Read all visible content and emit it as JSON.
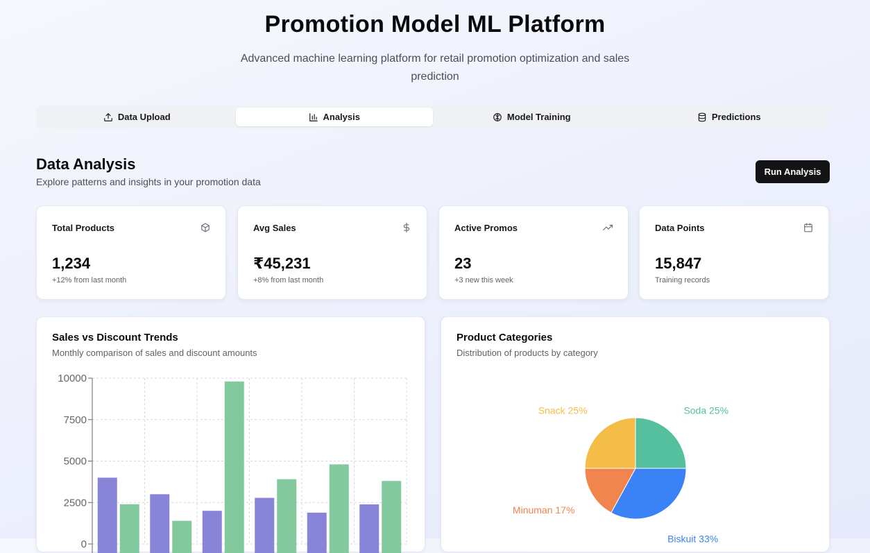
{
  "header": {
    "title": "Promotion Model ML Platform",
    "subtitle": "Advanced machine learning platform for retail promotion optimization and sales prediction"
  },
  "tabs": [
    {
      "label": "Data Upload",
      "icon": "upload-icon",
      "active": false
    },
    {
      "label": "Analysis",
      "icon": "bar-chart-icon",
      "active": true
    },
    {
      "label": "Model Training",
      "icon": "brain-icon",
      "active": false
    },
    {
      "label": "Predictions",
      "icon": "database-icon",
      "active": false
    }
  ],
  "section": {
    "title": "Data Analysis",
    "subtitle": "Explore patterns and insights in your promotion data",
    "run_button": "Run Analysis"
  },
  "stats": [
    {
      "label": "Total Products",
      "value": "1,234",
      "note": "+12% from last month",
      "icon": "package-icon"
    },
    {
      "label": "Avg Sales",
      "value": "₹45,231",
      "note": "+8% from last month",
      "icon": "dollar-icon"
    },
    {
      "label": "Active Promos",
      "value": "23",
      "note": "+3 new this week",
      "icon": "trending-up-icon"
    },
    {
      "label": "Data Points",
      "value": "15,847",
      "note": "Training records",
      "icon": "calendar-icon"
    }
  ],
  "sales_panel": {
    "title": "Sales vs Discount Trends",
    "subtitle": "Monthly comparison of sales and discount amounts"
  },
  "category_panel": {
    "title": "Product Categories",
    "subtitle": "Distribution of products by category"
  },
  "chart_data": [
    {
      "type": "bar",
      "ylim": [
        0,
        10000
      ],
      "yticks": [
        "0",
        "2500",
        "5000",
        "7500",
        "10000"
      ],
      "grid": true,
      "series": [
        {
          "values": [
            4000,
            3000,
            2000,
            2780,
            1890,
            2390
          ],
          "color": "#8884d8"
        },
        {
          "values": [
            2400,
            1398,
            9800,
            3908,
            4800,
            3800
          ],
          "color": "#82ca9d"
        }
      ]
    },
    {
      "type": "pie",
      "slices": [
        {
          "label": "Biskuit 33%",
          "value": 33,
          "color": "#3b82f6"
        },
        {
          "label": "Minuman 17%",
          "value": 17,
          "color": "#f0854e"
        },
        {
          "label": "Snack 25%",
          "value": 25,
          "color": "#f4bd48"
        },
        {
          "label": "Soda 25%",
          "value": 25,
          "color": "#55c09d"
        }
      ]
    }
  ]
}
